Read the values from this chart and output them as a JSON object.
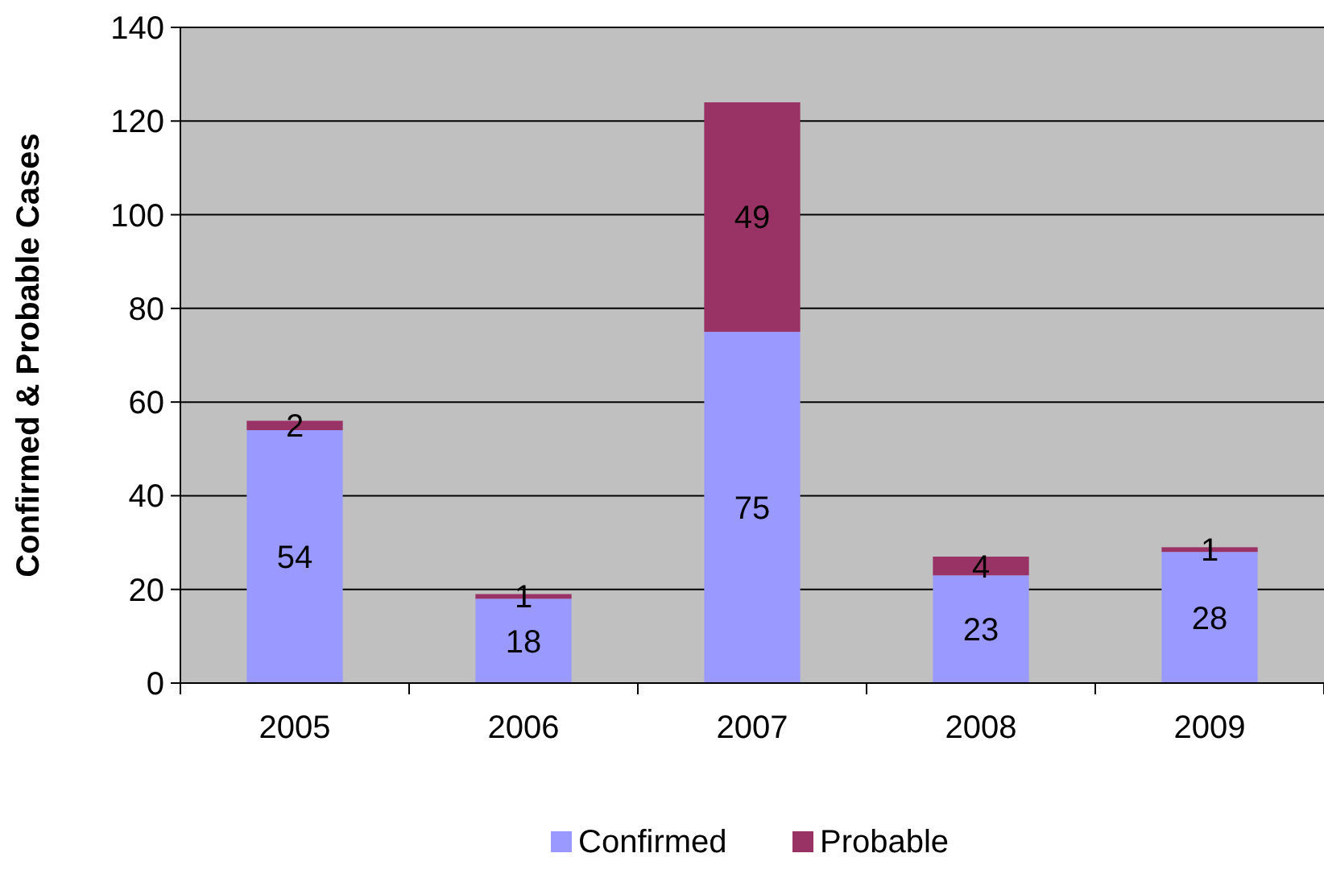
{
  "chart_data": {
    "type": "bar",
    "ylabel": "Confirmed & Probable Cases",
    "categories": [
      "2005",
      "2006",
      "2007",
      "2008",
      "2009"
    ],
    "series": [
      {
        "name": "Confirmed",
        "color": "#9999ff",
        "values": [
          54,
          18,
          75,
          23,
          28
        ]
      },
      {
        "name": "Probable",
        "color": "#993366",
        "values": [
          2,
          1,
          49,
          4,
          1
        ]
      }
    ],
    "stacked": true,
    "data_labels": true,
    "ylim": [
      0,
      140
    ],
    "yticks": [
      0,
      20,
      40,
      60,
      80,
      100,
      120,
      140
    ],
    "grid": "y",
    "legend": "bottom"
  }
}
